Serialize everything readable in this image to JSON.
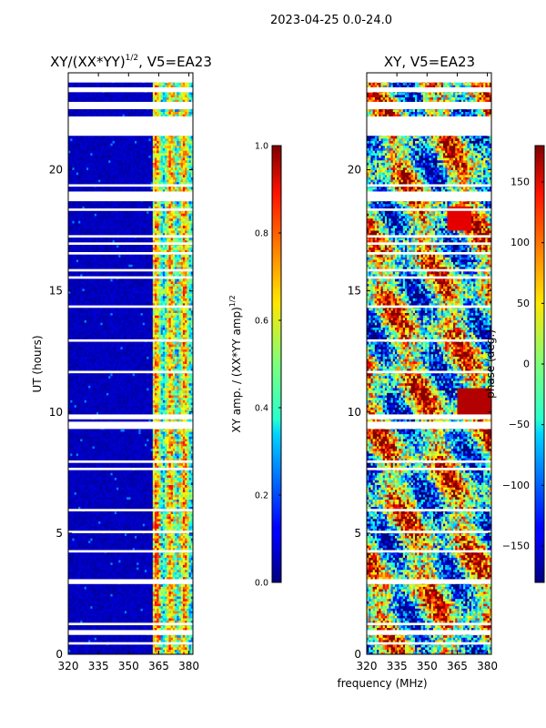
{
  "figure": {
    "suptitle": "2023-04-25 0.0-24.0",
    "xlabel": "frequency (MHz)"
  },
  "chart_data": [
    {
      "type": "heatmap",
      "id": "amp",
      "title_main": "XY/(XX*YY)",
      "title_sup": "1/2",
      "title_tail": ", V5=EA23",
      "xlabel": "",
      "ylabel": "UT (hours)",
      "xlim": [
        320,
        382
      ],
      "ylim": [
        0,
        24
      ],
      "xticks": [
        320,
        335,
        350,
        365,
        380
      ],
      "yticks": [
        0,
        5,
        10,
        15,
        20
      ],
      "colorbar": {
        "label_main": "XY amp. / (XX*YY amp)",
        "label_sup": "1/2",
        "vmin": 0.0,
        "vmax": 1.0,
        "ticks": [
          0.0,
          0.2,
          0.4,
          0.6,
          0.8,
          1.0
        ],
        "tick_labels": [
          "0.0",
          "0.2",
          "0.4",
          "0.6",
          "0.8",
          "1.0"
        ],
        "colormap": "jet"
      },
      "flagged_hours": [
        [
          0.4,
          0.5
        ],
        [
          0.8,
          1.0
        ],
        [
          1.2,
          1.3
        ],
        [
          2.9,
          3.1
        ],
        [
          4.2,
          4.3
        ],
        [
          5.0,
          5.1
        ],
        [
          5.9,
          6.0
        ],
        [
          7.6,
          7.7
        ],
        [
          7.9,
          8.0
        ],
        [
          9.3,
          9.6
        ],
        [
          9.7,
          9.9
        ],
        [
          11.6,
          11.7
        ],
        [
          12.9,
          13.0
        ],
        [
          14.3,
          14.4
        ],
        [
          15.5,
          15.6
        ],
        [
          15.8,
          15.9
        ],
        [
          16.5,
          16.6
        ],
        [
          16.9,
          17.0
        ],
        [
          17.2,
          17.3
        ],
        [
          18.3,
          18.4
        ],
        [
          18.7,
          19.1
        ],
        [
          19.3,
          19.4
        ],
        [
          21.4,
          22.2
        ],
        [
          22.5,
          22.8
        ],
        [
          23.2,
          23.4
        ],
        [
          23.6,
          24.0
        ]
      ],
      "active_band_mhz": [
        362,
        382
      ]
    },
    {
      "type": "heatmap",
      "id": "phase",
      "title": "XY, V5=EA23",
      "xlabel": "",
      "ylabel": "",
      "xlim": [
        320,
        382
      ],
      "ylim": [
        0,
        24
      ],
      "xticks": [
        320,
        335,
        350,
        365,
        380
      ],
      "yticks": [
        0,
        5,
        10,
        15,
        20
      ],
      "colorbar": {
        "label": "phase (deg.)",
        "vmin": -180,
        "vmax": 180,
        "ticks": [
          -150,
          -100,
          -50,
          0,
          50,
          100,
          150
        ],
        "tick_labels": [
          "−150",
          "−100",
          "−50",
          "0",
          "50",
          "100",
          "150"
        ],
        "colormap": "jet"
      },
      "flagged_hours": [
        [
          0.4,
          0.5
        ],
        [
          0.8,
          1.0
        ],
        [
          1.2,
          1.3
        ],
        [
          2.9,
          3.1
        ],
        [
          4.2,
          4.3
        ],
        [
          5.0,
          5.1
        ],
        [
          5.9,
          6.0
        ],
        [
          7.6,
          7.7
        ],
        [
          7.9,
          8.0
        ],
        [
          9.3,
          9.6
        ],
        [
          9.7,
          9.9
        ],
        [
          11.6,
          11.7
        ],
        [
          12.9,
          13.0
        ],
        [
          14.3,
          14.4
        ],
        [
          15.5,
          15.6
        ],
        [
          15.8,
          15.9
        ],
        [
          16.5,
          16.6
        ],
        [
          16.9,
          17.0
        ],
        [
          17.2,
          17.3
        ],
        [
          18.3,
          18.4
        ],
        [
          18.7,
          19.1
        ],
        [
          19.3,
          19.4
        ],
        [
          21.4,
          22.2
        ],
        [
          22.5,
          22.8
        ],
        [
          23.2,
          23.4
        ],
        [
          23.6,
          24.0
        ]
      ]
    }
  ]
}
